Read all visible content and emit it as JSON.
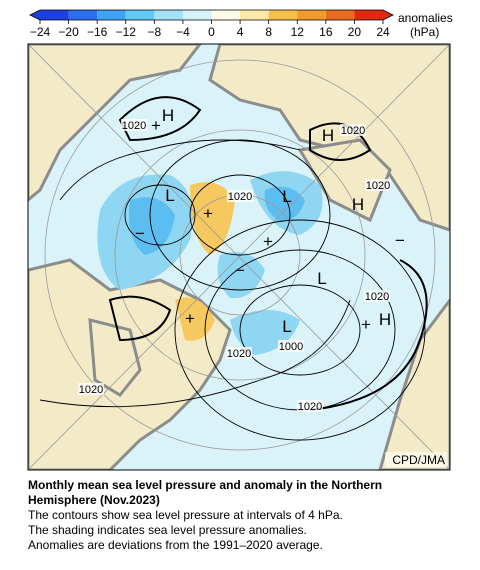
{
  "colorbar": {
    "ticks": [
      {
        "value": -24,
        "label": "−24"
      },
      {
        "value": -20,
        "label": "−20"
      },
      {
        "value": -16,
        "label": "−16"
      },
      {
        "value": -12,
        "label": "−12"
      },
      {
        "value": -8,
        "label": "−8"
      },
      {
        "value": -4,
        "label": "−4"
      },
      0,
      4,
      8,
      12,
      16,
      20,
      24
    ],
    "colors": [
      "#1f3fe0",
      "#2b6ff0",
      "#3ea2f5",
      "#62c8f4",
      "#a2e1f6",
      "#d4f3fb",
      "#fffbe8",
      "#ffe9a8",
      "#f6c04a",
      "#f09a2c",
      "#e86a1e",
      "#e02a10"
    ],
    "label": [
      "anomalies",
      "(hPa)"
    ]
  },
  "map": {
    "labels": [
      "1020",
      "H",
      "+",
      "H",
      "1020",
      "1020",
      "H",
      "L",
      "1020",
      "+",
      "L",
      "−",
      "+",
      "−",
      "−",
      "L",
      "1020",
      "+",
      "H",
      "+",
      "L",
      "1000",
      "1020",
      "1020",
      "1020"
    ],
    "credit": "CPD/JMA"
  },
  "caption": {
    "title_lines": [
      "Monthly mean sea level pressure and anomaly in the Northern",
      "Hemisphere (Nov.2023)"
    ],
    "lines": [
      "The contours show sea level pressure at intervals of 4 hPa.",
      "The shading indicates sea level pressure anomalies.",
      "Anomalies are deviations from the 1991–2020 average."
    ]
  }
}
